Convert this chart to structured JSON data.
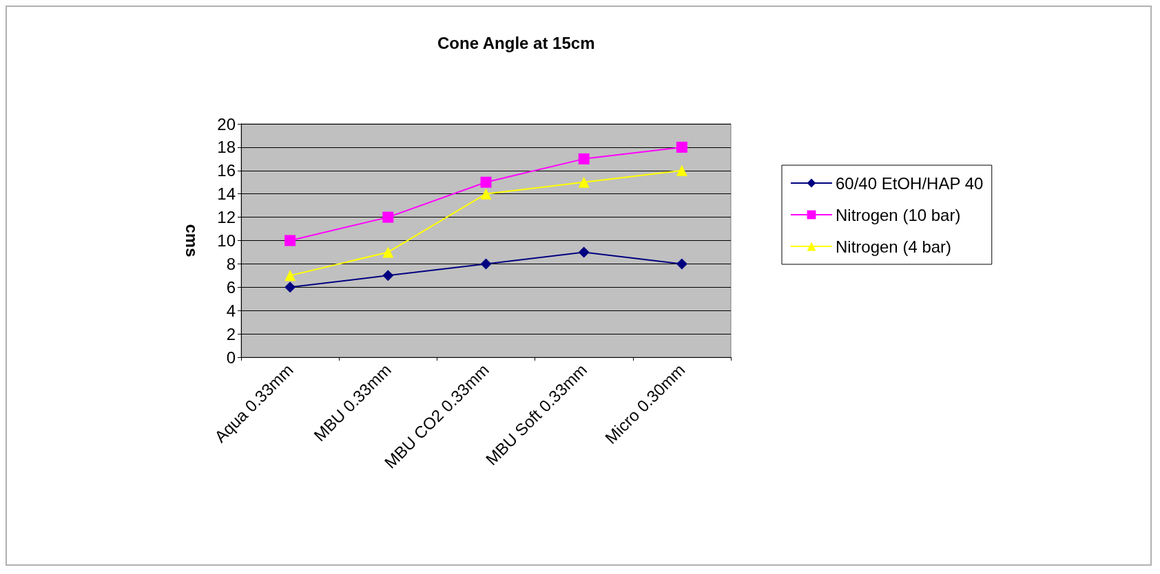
{
  "chart_data": {
    "type": "line",
    "title": "Cone Angle at 15cm",
    "ylabel": "cms",
    "categories": [
      "Aqua 0.33mm",
      "MBU 0.33mm",
      "MBU CO2 0.33mm",
      "MBU Soft 0.33mm",
      "Micro 0.30mm"
    ],
    "series": [
      {
        "name": "60/40 EtOH/HAP 40",
        "color": "#000080",
        "values": [
          6,
          7,
          8,
          9,
          8
        ],
        "marker": "diamond"
      },
      {
        "name": "Nitrogen (10 bar)",
        "color": "#ff00ff",
        "values": [
          10,
          12,
          15,
          17,
          18
        ],
        "marker": "square"
      },
      {
        "name": "Nitrogen (4 bar)",
        "color": "#ffff00",
        "values": [
          7,
          9,
          14,
          15,
          16
        ],
        "marker": "triangle"
      }
    ],
    "ylim": [
      0,
      20
    ],
    "yticks": [
      0,
      2,
      4,
      6,
      8,
      10,
      12,
      14,
      16,
      18,
      20
    ],
    "grid": "y",
    "legend": "right"
  }
}
